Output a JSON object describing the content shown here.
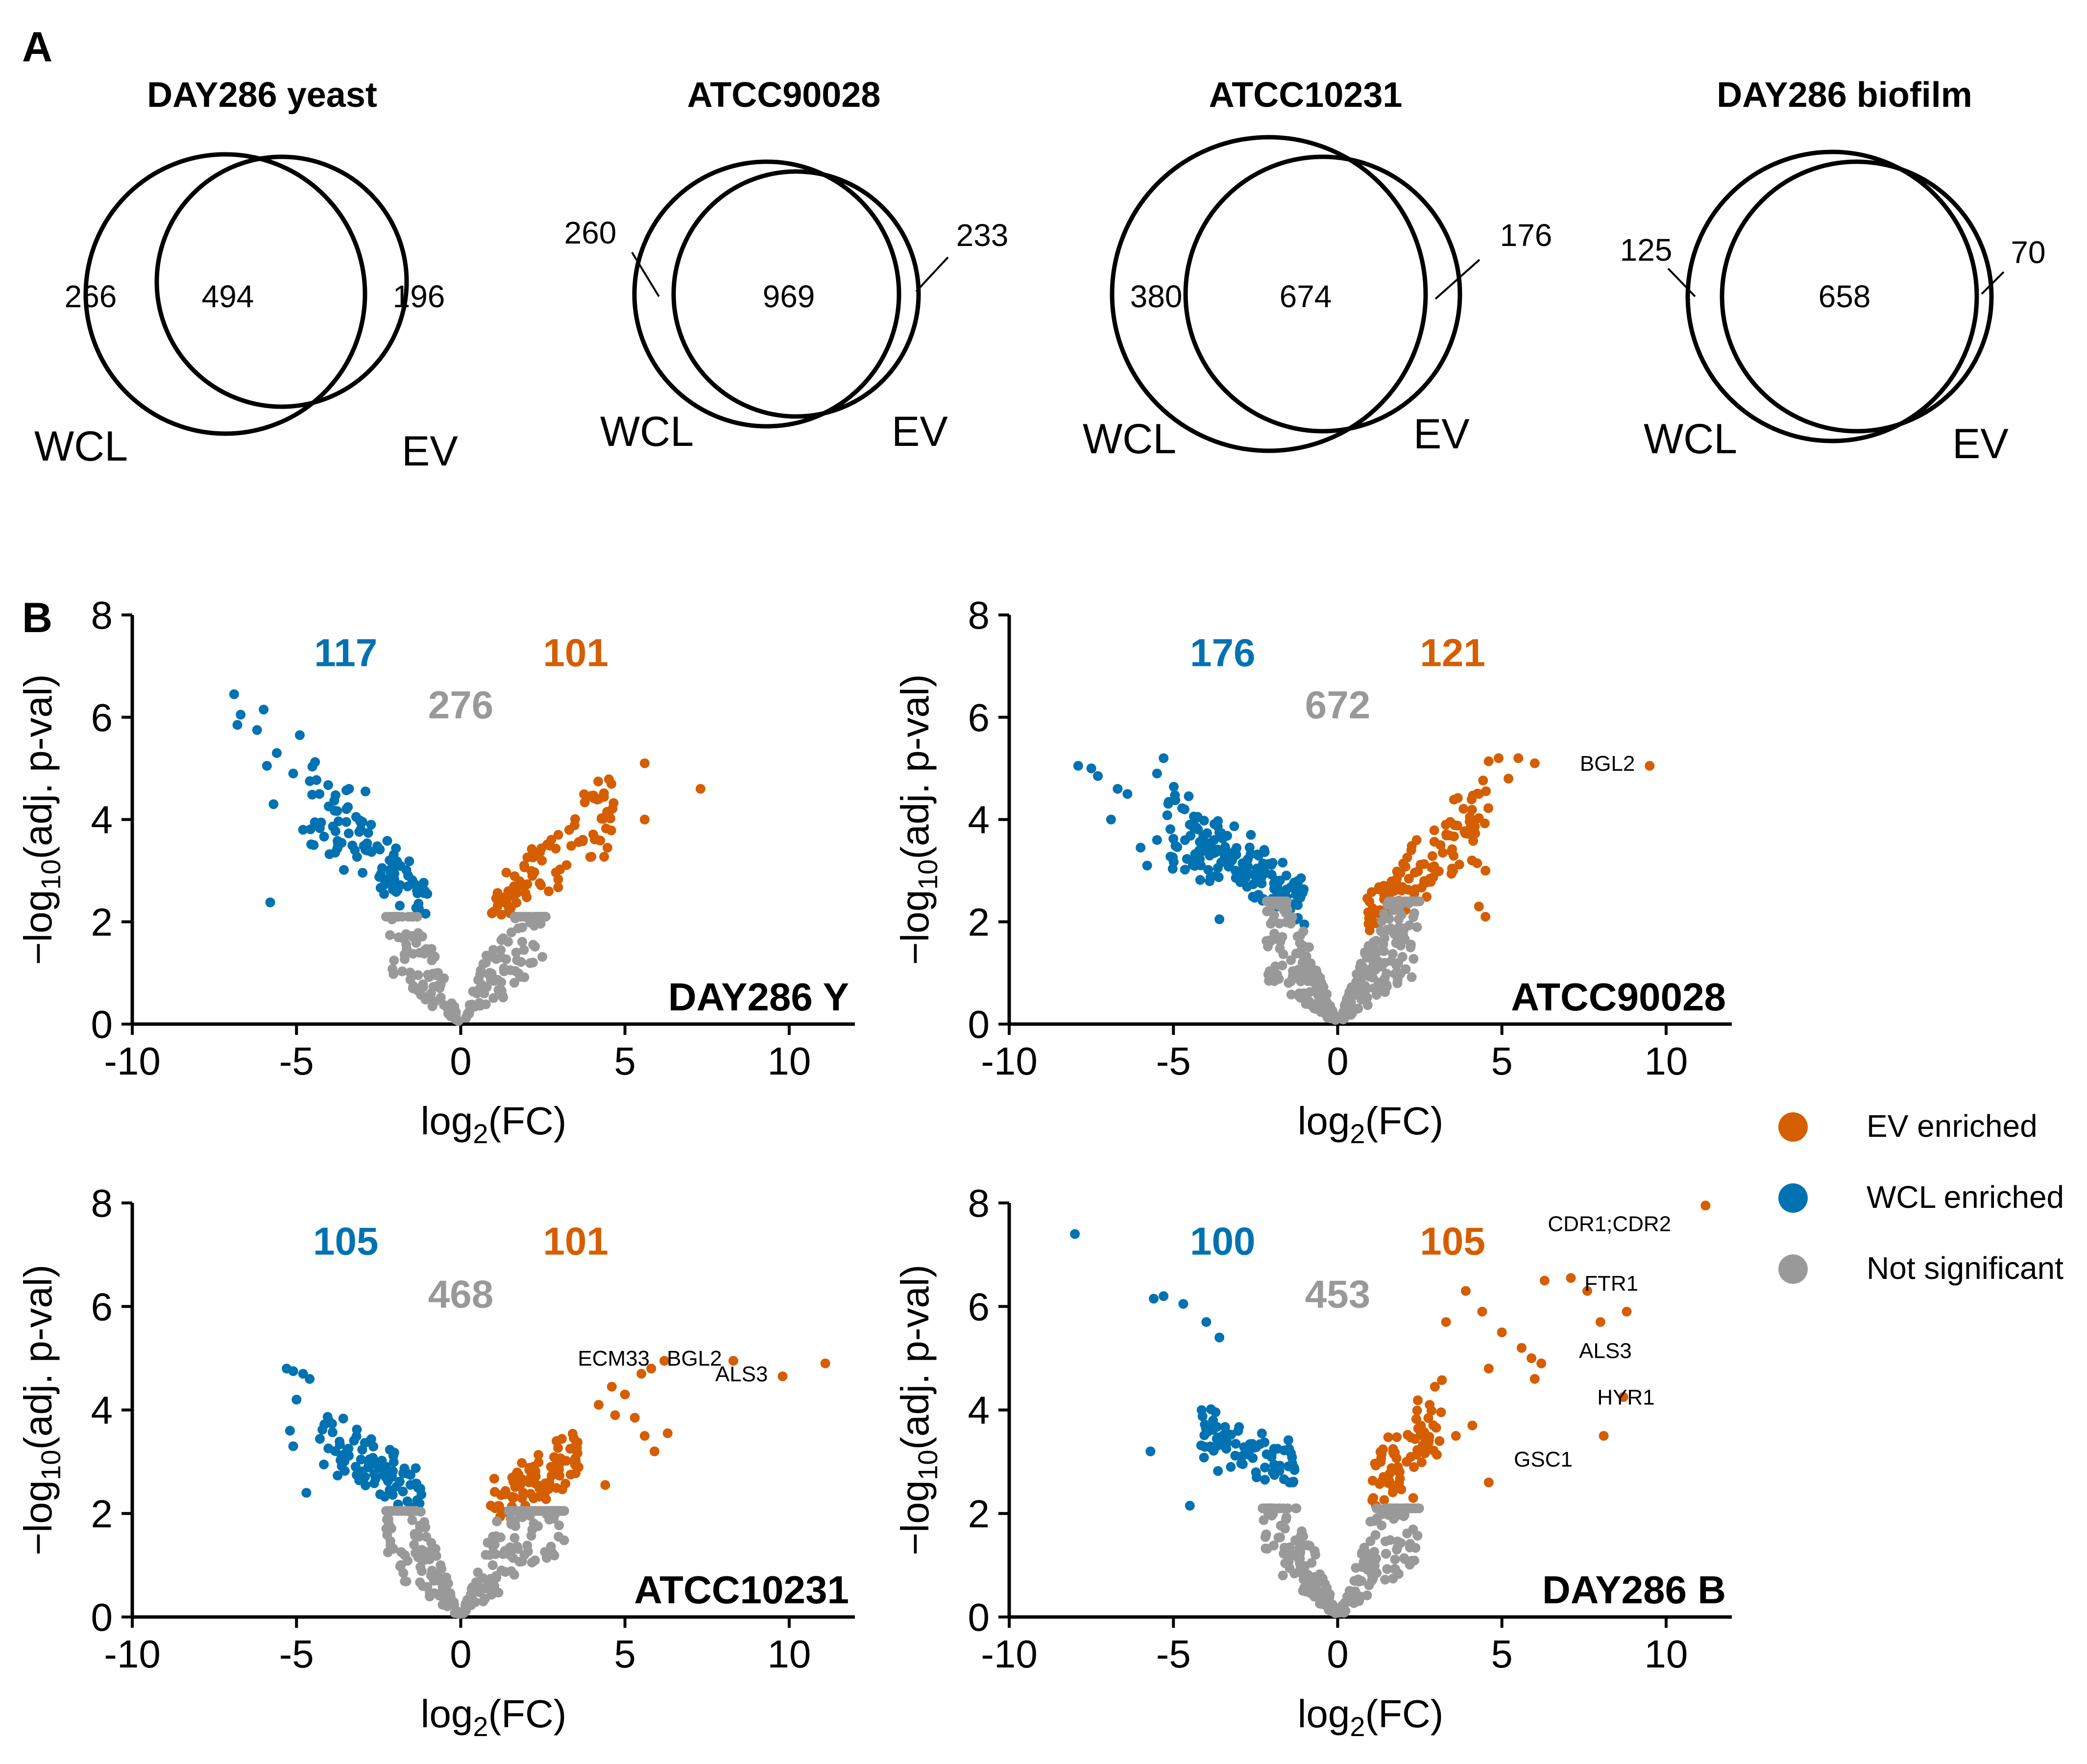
{
  "panel_a": {
    "letter": "A",
    "venns": [
      {
        "title": "DAY286 yeast",
        "left_label": "WCL",
        "right_label": "EV",
        "left_only": "266",
        "shared": "494",
        "right_only": "196"
      },
      {
        "title": "ATCC90028",
        "left_label": "WCL",
        "right_label": "EV",
        "left_only": "260",
        "shared": "969",
        "right_only": "233"
      },
      {
        "title": "ATCC10231",
        "left_label": "WCL",
        "right_label": "EV",
        "left_only": "380",
        "shared": "674",
        "right_only": "176"
      },
      {
        "title": "DAY286 biofilm",
        "left_label": "WCL",
        "right_label": "EV",
        "left_only": "125",
        "shared": "658",
        "right_only": "70"
      }
    ]
  },
  "panel_b": {
    "letter": "B",
    "colors": {
      "ev": "#D55E00",
      "wcl": "#0072B2",
      "ns": "#999999"
    },
    "legend": [
      {
        "label": "EV enriched",
        "color": "#D55E00"
      },
      {
        "label": "WCL enriched",
        "color": "#0072B2"
      },
      {
        "label": "Not significant",
        "color": "#999999"
      }
    ]
  },
  "chart_data": [
    {
      "type": "scatter",
      "name": "DAY286 Y",
      "xlabel": "log2(FC)",
      "ylabel": "-log10(adj. p-val)",
      "xlim": [
        -10,
        12
      ],
      "ylim": [
        0,
        8
      ],
      "xticks": [
        "-10",
        "-5",
        "0",
        "5",
        "10"
      ],
      "yticks": [
        "0",
        "2",
        "4",
        "6",
        "8"
      ],
      "counts": {
        "wcl": "117",
        "ns": "276",
        "ev": "101"
      },
      "labels": [],
      "highlights": [
        {
          "group": "wcl",
          "points": [
            [
              -6.9,
              6.45
            ],
            [
              -6.7,
              6.05
            ],
            [
              -6.0,
              6.15
            ],
            [
              -6.8,
              5.85
            ],
            [
              -6.2,
              5.75
            ],
            [
              -4.9,
              5.65
            ],
            [
              -5.6,
              5.3
            ],
            [
              -5.9,
              5.05
            ],
            [
              -5.1,
              4.9
            ],
            [
              -5.7,
              4.3
            ],
            [
              -4.8,
              3.8
            ],
            [
              -5.8,
              2.38
            ],
            [
              -4.3,
              4.5
            ],
            [
              -3.4,
              4.6
            ],
            [
              -2.9,
              4.55
            ]
          ]
        },
        {
          "group": "ev",
          "points": [
            [
              5.6,
              5.1
            ],
            [
              7.3,
              4.6
            ],
            [
              5.6,
              4.0
            ],
            [
              4.2,
              4.4
            ],
            [
              4.5,
              4.1
            ]
          ]
        }
      ],
      "clouds": [
        {
          "group": "wcl",
          "n": 100,
          "x": [
            -4.6,
            -1.0
          ],
          "y0": 1.9,
          "slope": -0.68,
          "spread": 0.55
        },
        {
          "group": "ev",
          "n": 96,
          "x": [
            0.9,
            4.7
          ],
          "y0": 1.75,
          "slope": 0.72,
          "spread": 0.55
        },
        {
          "group": "ns",
          "n": 200,
          "x": [
            -2.3,
            2.6
          ],
          "v": 1.6,
          "cap": 2.1
        }
      ]
    },
    {
      "type": "scatter",
      "name": "ATCC90028",
      "xlabel": "log2(FC)",
      "ylabel": "-log10(adj. p-val)",
      "xlim": [
        -10,
        12
      ],
      "ylim": [
        0,
        8
      ],
      "xticks": [
        "-10",
        "-5",
        "0",
        "5",
        "10"
      ],
      "yticks": [
        "0",
        "2",
        "4",
        "6",
        "8"
      ],
      "counts": {
        "wcl": "176",
        "ns": "672",
        "ev": "121"
      },
      "labels": [
        {
          "text": "BGL2",
          "x": 9.5,
          "y": 5.05
        }
      ],
      "highlights": [
        {
          "group": "ev",
          "points": [
            [
              9.5,
              5.05
            ],
            [
              5.5,
              5.2
            ],
            [
              6.0,
              5.1
            ],
            [
              4.9,
              5.2
            ],
            [
              5.2,
              4.8
            ],
            [
              4.3,
              4.5
            ],
            [
              4.5,
              3.0
            ],
            [
              4.5,
              2.1
            ],
            [
              4.3,
              2.3
            ],
            [
              4.0,
              3.8
            ]
          ]
        },
        {
          "group": "wcl",
          "points": [
            [
              -7.9,
              5.05
            ],
            [
              -7.5,
              5.0
            ],
            [
              -7.3,
              4.85
            ],
            [
              -6.7,
              4.6
            ],
            [
              -6.4,
              4.5
            ],
            [
              -5.5,
              4.9
            ],
            [
              -5.3,
              5.2
            ],
            [
              -6.9,
              4.0
            ],
            [
              -5.5,
              3.6
            ],
            [
              -5.8,
              3.1
            ],
            [
              -6.0,
              3.45
            ],
            [
              -3.7,
              2.9
            ],
            [
              -3.6,
              2.05
            ],
            [
              -4.5,
              3.9
            ]
          ]
        }
      ],
      "clouds": [
        {
          "group": "wcl",
          "n": 162,
          "x": [
            -5.2,
            -1.0
          ],
          "y0": 1.95,
          "slope": -0.52,
          "spread": 0.75
        },
        {
          "group": "ev",
          "n": 111,
          "x": [
            0.9,
            4.6
          ],
          "y0": 1.75,
          "slope": 0.68,
          "spread": 0.7
        },
        {
          "group": "ns",
          "n": 320,
          "x": [
            -2.2,
            2.5
          ],
          "v": 1.6,
          "cap": 2.4
        }
      ]
    },
    {
      "type": "scatter",
      "name": "ATCC10231",
      "xlabel": "log2(FC)",
      "ylabel": "-log10(adj. p-val)",
      "xlim": [
        -10,
        12
      ],
      "ylim": [
        0,
        8
      ],
      "xticks": [
        "-10",
        "-5",
        "0",
        "5",
        "10"
      ],
      "yticks": [
        "0",
        "2",
        "4",
        "6",
        "8"
      ],
      "counts": {
        "wcl": "105",
        "ns": "468",
        "ev": "101"
      },
      "labels": [
        {
          "text": "ECM33",
          "x": 6.2,
          "y": 4.95
        },
        {
          "text": "BGL2",
          "x": 8.4,
          "y": 4.95
        },
        {
          "text": "ALS3",
          "x": 9.8,
          "y": 4.65
        }
      ],
      "highlights": [
        {
          "group": "ev",
          "points": [
            [
              11.1,
              4.9
            ],
            [
              9.8,
              4.65
            ],
            [
              8.3,
              4.95
            ],
            [
              6.2,
              4.95
            ],
            [
              5.8,
              4.8
            ],
            [
              5.5,
              4.7
            ],
            [
              4.6,
              4.45
            ],
            [
              4.2,
              4.1
            ],
            [
              4.7,
              3.9
            ],
            [
              5.0,
              4.3
            ],
            [
              5.3,
              3.85
            ],
            [
              6.3,
              3.55
            ],
            [
              5.6,
              3.5
            ],
            [
              5.9,
              3.2
            ],
            [
              4.4,
              2.55
            ]
          ]
        },
        {
          "group": "wcl",
          "points": [
            [
              -5.3,
              4.8
            ],
            [
              -5.1,
              4.75
            ],
            [
              -4.8,
              4.7
            ],
            [
              -4.6,
              4.6
            ],
            [
              -5.0,
              4.2
            ],
            [
              -5.2,
              3.6
            ],
            [
              -5.1,
              3.3
            ],
            [
              -4.7,
              2.4
            ]
          ]
        }
      ],
      "clouds": [
        {
          "group": "wcl",
          "n": 90,
          "x": [
            -4.3,
            -1.0
          ],
          "y0": 2.0,
          "slope": -0.45,
          "spread": 0.6
        },
        {
          "group": "ev",
          "n": 84,
          "x": [
            0.9,
            3.6
          ],
          "y0": 1.85,
          "slope": 0.5,
          "spread": 0.6
        },
        {
          "group": "ns",
          "n": 260,
          "x": [
            -2.3,
            3.2
          ],
          "v": 1.6,
          "cap": 2.05
        }
      ]
    },
    {
      "type": "scatter",
      "name": "DAY286 B",
      "xlabel": "log2(FC)",
      "ylabel": "-log10(adj. p-val)",
      "xlim": [
        -10,
        12
      ],
      "ylim": [
        0,
        8
      ],
      "xticks": [
        "-10",
        "-5",
        "0",
        "5",
        "10"
      ],
      "yticks": [
        "0",
        "2",
        "4",
        "6",
        "8"
      ],
      "counts": {
        "wcl": "100",
        "ns": "453",
        "ev": "105"
      },
      "labels": [
        {
          "text": "CDR1;CDR2",
          "x": 10.6,
          "y": 7.55
        },
        {
          "text": "FTR1",
          "x": 9.6,
          "y": 6.4
        },
        {
          "text": "ALS3",
          "x": 9.4,
          "y": 5.1
        },
        {
          "text": "HYR1",
          "x": 10.1,
          "y": 4.2
        },
        {
          "text": "GSC1",
          "x": 7.6,
          "y": 3.0
        }
      ],
      "highlights": [
        {
          "group": "ev",
          "points": [
            [
              11.2,
              7.95
            ],
            [
              8.8,
              5.9
            ],
            [
              8.0,
              5.7
            ],
            [
              8.7,
              4.25
            ],
            [
              8.1,
              3.5
            ],
            [
              7.1,
              6.55
            ],
            [
              6.3,
              6.5
            ],
            [
              7.6,
              6.3
            ],
            [
              5.0,
              5.5
            ],
            [
              5.6,
              5.2
            ],
            [
              5.9,
              5.0
            ],
            [
              6.2,
              4.9
            ],
            [
              4.6,
              4.8
            ],
            [
              6.0,
              4.6
            ],
            [
              3.9,
              6.3
            ],
            [
              3.3,
              5.7
            ],
            [
              4.4,
              5.9
            ],
            [
              3.6,
              3.5
            ],
            [
              3.1,
              3.4
            ],
            [
              4.6,
              2.6
            ],
            [
              2.3,
              2.3
            ],
            [
              4.1,
              3.7
            ],
            [
              2.8,
              4.1
            ]
          ]
        },
        {
          "group": "wcl",
          "points": [
            [
              -8.0,
              7.4
            ],
            [
              -5.6,
              6.15
            ],
            [
              -5.3,
              6.2
            ],
            [
              -4.7,
              6.05
            ],
            [
              -5.7,
              3.2
            ],
            [
              -4.5,
              2.15
            ],
            [
              -4.0,
              5.7
            ],
            [
              -3.6,
              5.4
            ]
          ]
        }
      ],
      "clouds": [
        {
          "group": "wcl",
          "n": 84,
          "x": [
            -4.2,
            -1.3
          ],
          "y0": 2.6,
          "slope": -0.28,
          "spread": 0.9
        },
        {
          "group": "ev",
          "n": 70,
          "x": [
            1.0,
            3.2
          ],
          "y0": 2.0,
          "slope": 0.75,
          "spread": 0.75
        },
        {
          "group": "ns",
          "n": 260,
          "x": [
            -2.3,
            2.5
          ],
          "v": 1.7,
          "cap": 2.1
        }
      ]
    }
  ]
}
